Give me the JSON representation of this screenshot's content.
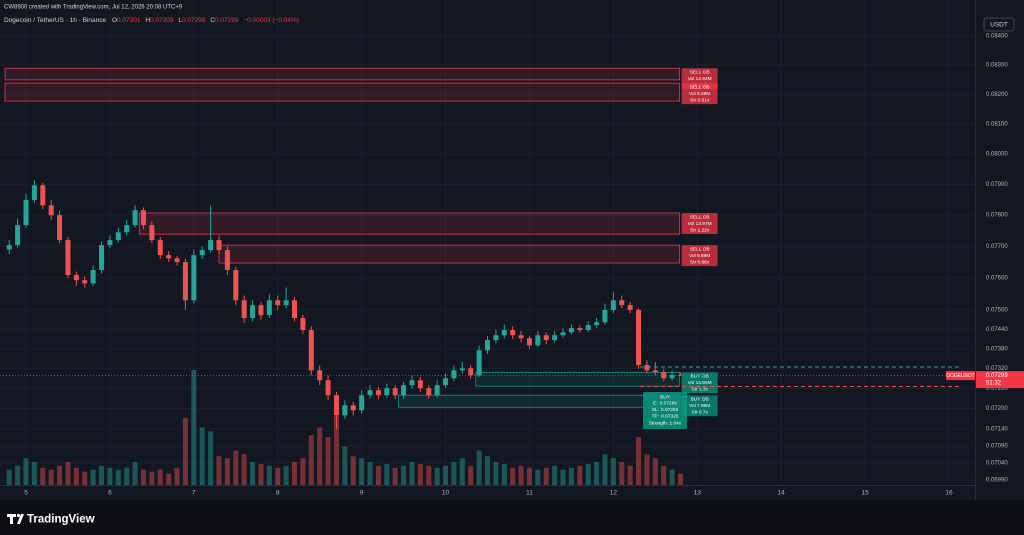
{
  "header": {
    "attribution": "CW8900 created with TradingView.com, Jul 12, 2026 20:08 UTC+9",
    "symbol": "Dogecoin / TetherUS · 1h · Binance",
    "ohlc": [
      {
        "key": "O",
        "text": "0.07301"
      },
      {
        "key": "H",
        "text": "0.07309"
      },
      {
        "key": "L",
        "text": "0.07299"
      },
      {
        "key": "C",
        "text": "0.07299"
      }
    ],
    "change": "−0.00003 (−0.04%)"
  },
  "chart_data": {
    "type": "candlestick",
    "currency": "USDT",
    "log": true,
    "grid": true,
    "up_color": "#26a69a",
    "down_color": "#ef5350",
    "x": [
      4.8,
      4.9,
      5,
      5.1,
      5.2,
      5.3,
      5.4,
      5.5,
      5.6,
      5.7,
      5.8,
      5.9,
      6,
      6.1,
      6.2,
      6.3,
      6.4,
      6.5,
      6.6,
      6.7,
      6.8,
      6.9,
      7,
      7.1,
      7.2,
      7.3,
      7.4,
      7.5,
      7.6,
      7.7,
      7.8,
      7.9,
      8,
      8.1,
      8.2,
      8.3,
      8.4,
      8.5,
      8.6,
      8.7,
      8.8,
      8.9,
      9,
      9.1,
      9.2,
      9.3,
      9.4,
      9.5,
      9.6,
      9.7,
      9.8,
      9.9,
      10,
      10.1,
      10.2,
      10.3,
      10.4,
      10.5,
      10.6,
      10.7,
      10.8,
      10.9,
      11,
      11.1,
      11.2,
      11.3,
      11.4,
      11.5,
      11.6,
      11.7,
      11.8,
      11.9,
      12,
      12.1,
      12.2,
      12.3,
      12.4,
      12.5,
      12.6,
      12.7,
      12.8
    ],
    "open": [
      0.0769,
      0.07704,
      0.07768,
      0.07849,
      0.07897,
      0.07832,
      0.078,
      0.0772,
      0.07609,
      0.07593,
      0.07583,
      0.07625,
      0.07704,
      0.0772,
      0.07745,
      0.07768,
      0.07816,
      0.07768,
      0.0772,
      0.07672,
      0.07662,
      0.0765,
      0.0753,
      0.07672,
      0.07688,
      0.0772,
      0.07688,
      0.07625,
      0.0753,
      0.07475,
      0.07515,
      0.07484,
      0.0753,
      0.07515,
      0.0753,
      0.07475,
      0.07438,
      0.07315,
      0.07285,
      0.0724,
      0.0718,
      0.0721,
      0.07195,
      0.0724,
      0.07255,
      0.0724,
      0.07261,
      0.0724,
      0.0727,
      0.07285,
      0.07261,
      0.0724,
      0.0727,
      0.07291,
      0.07315,
      0.07321,
      0.073,
      0.07376,
      0.07407,
      0.07422,
      0.07438,
      0.07422,
      0.07413,
      0.07391,
      0.07422,
      0.07407,
      0.07422,
      0.07431,
      0.07444,
      0.07438,
      0.07453,
      0.07462,
      0.075,
      0.0753,
      0.07515,
      0.075,
      0.07331,
      0.07315,
      0.07309,
      0.07291,
      0.07301
    ],
    "high": [
      0.0772,
      0.0779,
      0.0787,
      0.07914,
      0.07905,
      0.0785,
      0.07815,
      0.0773,
      0.0762,
      0.07605,
      0.0764,
      0.07715,
      0.07735,
      0.0776,
      0.07785,
      0.07832,
      0.07825,
      0.0778,
      0.0773,
      0.07685,
      0.0767,
      0.0766,
      0.0769,
      0.077,
      0.07832,
      0.07735,
      0.077,
      0.07635,
      0.07545,
      0.0753,
      0.07525,
      0.0755,
      0.07545,
      0.0757,
      0.0754,
      0.07485,
      0.0745,
      0.0733,
      0.073,
      0.0725,
      0.07225,
      0.0722,
      0.07255,
      0.0727,
      0.07265,
      0.07275,
      0.0727,
      0.0728,
      0.073,
      0.07295,
      0.0727,
      0.07285,
      0.07305,
      0.0733,
      0.0734,
      0.0733,
      0.0739,
      0.0742,
      0.0744,
      0.07455,
      0.0745,
      0.07435,
      0.0742,
      0.07435,
      0.0743,
      0.07435,
      0.07445,
      0.07455,
      0.07452,
      0.07465,
      0.07475,
      0.0752,
      0.07555,
      0.07545,
      0.07525,
      0.07505,
      0.07345,
      0.0734,
      0.0732,
      0.07315,
      0.07309
    ],
    "low": [
      0.07675,
      0.07695,
      0.0776,
      0.0784,
      0.0782,
      0.07785,
      0.0771,
      0.076,
      0.07575,
      0.0757,
      0.07575,
      0.07615,
      0.07695,
      0.07712,
      0.07735,
      0.0776,
      0.07755,
      0.0771,
      0.0766,
      0.0765,
      0.0764,
      0.075,
      0.0752,
      0.0766,
      0.0768,
      0.07675,
      0.0761,
      0.07515,
      0.0746,
      0.07465,
      0.0747,
      0.07475,
      0.075,
      0.07505,
      0.07465,
      0.07425,
      0.073,
      0.0727,
      0.07225,
      0.0714,
      0.0717,
      0.0718,
      0.07185,
      0.0723,
      0.07228,
      0.07232,
      0.07228,
      0.0723,
      0.0726,
      0.0725,
      0.0723,
      0.07232,
      0.07262,
      0.07282,
      0.07305,
      0.0729,
      0.07295,
      0.07365,
      0.07398,
      0.07412,
      0.0741,
      0.074,
      0.0738,
      0.07385,
      0.07395,
      0.074,
      0.07415,
      0.07425,
      0.0743,
      0.07432,
      0.07445,
      0.07455,
      0.0749,
      0.07505,
      0.0749,
      0.0732,
      0.07305,
      0.073,
      0.07282,
      0.07285,
      0.07299
    ],
    "close": [
      0.07704,
      0.07768,
      0.07849,
      0.07897,
      0.07832,
      0.078,
      0.0772,
      0.07609,
      0.07593,
      0.07583,
      0.07625,
      0.07704,
      0.0772,
      0.07745,
      0.07768,
      0.07816,
      0.07768,
      0.0772,
      0.07672,
      0.07662,
      0.0765,
      0.0753,
      0.07672,
      0.07688,
      0.0772,
      0.07688,
      0.07625,
      0.0753,
      0.07475,
      0.07515,
      0.07484,
      0.0753,
      0.07515,
      0.0753,
      0.07475,
      0.07438,
      0.07315,
      0.07285,
      0.0724,
      0.0718,
      0.0721,
      0.07195,
      0.0724,
      0.07255,
      0.0724,
      0.07261,
      0.0724,
      0.0727,
      0.07285,
      0.07261,
      0.0724,
      0.0727,
      0.07291,
      0.07315,
      0.07321,
      0.073,
      0.07376,
      0.07407,
      0.07422,
      0.07438,
      0.07422,
      0.07413,
      0.07391,
      0.07422,
      0.07407,
      0.07422,
      0.07431,
      0.07444,
      0.07438,
      0.07453,
      0.07462,
      0.075,
      0.0753,
      0.07515,
      0.075,
      0.07331,
      0.07315,
      0.07309,
      0.07291,
      0.07301,
      0.07299
    ],
    "volume": [
      8,
      10,
      14,
      12,
      9,
      8,
      10,
      12,
      9,
      7,
      8,
      10,
      9,
      8,
      9,
      12,
      8,
      7,
      8,
      6,
      9,
      35,
      60,
      30,
      28,
      15,
      14,
      18,
      16,
      12,
      11,
      10,
      9,
      10,
      12,
      14,
      26,
      30,
      25,
      36,
      20,
      15,
      14,
      12,
      10,
      11,
      9,
      10,
      12,
      11,
      10,
      9,
      10,
      12,
      14,
      10,
      18,
      15,
      12,
      11,
      9,
      10,
      9,
      8,
      9,
      10,
      8,
      9,
      10,
      11,
      12,
      16,
      14,
      12,
      10,
      25,
      16,
      14,
      10,
      8,
      6
    ],
    "xlim": [
      4.69,
      16.31
    ],
    "xticks": [
      5,
      6,
      7,
      8,
      9,
      10,
      11,
      12,
      13,
      14,
      15,
      16
    ],
    "ylim": [
      0.06976,
      0.08449
    ],
    "yticks": [
      {
        "value": 0.084,
        "label": "0.08400"
      },
      {
        "value": 0.083,
        "label": "0.08300"
      },
      {
        "value": 0.082,
        "label": "0.08200"
      },
      {
        "value": 0.081,
        "label": "0.08100"
      },
      {
        "value": 0.08,
        "label": "0.08000"
      },
      {
        "value": 0.079,
        "label": "0.07900"
      },
      {
        "value": 0.078,
        "label": "0.07800"
      },
      {
        "value": 0.077,
        "label": "0.07700"
      },
      {
        "value": 0.076,
        "label": "0.07600"
      },
      {
        "value": 0.075,
        "label": "0.07500"
      },
      {
        "value": 0.0744,
        "label": "0.07440"
      },
      {
        "value": 0.0738,
        "label": "0.07380"
      },
      {
        "value": 0.0732,
        "label": "0.07320"
      },
      {
        "value": 0.0726,
        "label": "0.07260"
      },
      {
        "value": 0.072,
        "label": "0.07200"
      },
      {
        "value": 0.0714,
        "label": "0.07140"
      },
      {
        "value": 0.0709,
        "label": "0.07090"
      },
      {
        "value": 0.0704,
        "label": "0.07040"
      },
      {
        "value": 0.0699,
        "label": "0.06990"
      }
    ],
    "zones": [
      {
        "color": "#f23645",
        "x0": 4.75,
        "x1": 12.79,
        "y0": 0.08289,
        "y1": 0.08249,
        "label": [
          "SELL OB",
          "Vol 14.94M",
          "Str 1.2x"
        ]
      },
      {
        "color": "#f23645",
        "x0": 4.75,
        "x1": 12.79,
        "y0": 0.08238,
        "y1": 0.08177,
        "label": [
          "SELL OB",
          "Vol 9.26M",
          "Str 0.81x"
        ]
      },
      {
        "color": "#f23645",
        "x0": 6.35,
        "x1": 12.79,
        "y0": 0.07807,
        "y1": 0.07739,
        "label": [
          "SELL OB",
          "Vol 13.97M",
          "Str 1.22x"
        ]
      },
      {
        "color": "#f23645",
        "x0": 7.3,
        "x1": 12.79,
        "y0": 0.07704,
        "y1": 0.07647,
        "label": [
          "SELL OB",
          "Vol 9.89M",
          "Str 0.86x"
        ]
      },
      {
        "color": "#089981",
        "x0": 10.36,
        "x1": 12.79,
        "y0": 0.07309,
        "y1": 0.07267,
        "label": [
          "BUY OB",
          "Vol 14.95M",
          "Str 1.3x"
        ]
      },
      {
        "color": "#089981",
        "x0": 9.44,
        "x1": 12.79,
        "y0": 0.0724,
        "y1": 0.07204,
        "label": [
          "BUY OB",
          "Vol 7.98M",
          "Str 0.7x"
        ]
      }
    ],
    "signal": {
      "title": "BUY",
      "rows": [
        {
          "key": "E:",
          "value": 0.07289
        },
        {
          "key": "SL:",
          "value": 0.07266
        },
        {
          "key": "TP:",
          "value": 0.07325
        }
      ],
      "strength": "Strength: 1.04x"
    },
    "last_price": 0.07299,
    "symbol_tag": "DOGEUSDT",
    "countdown": "51:32"
  },
  "footer": {
    "brand": "TradingView"
  }
}
